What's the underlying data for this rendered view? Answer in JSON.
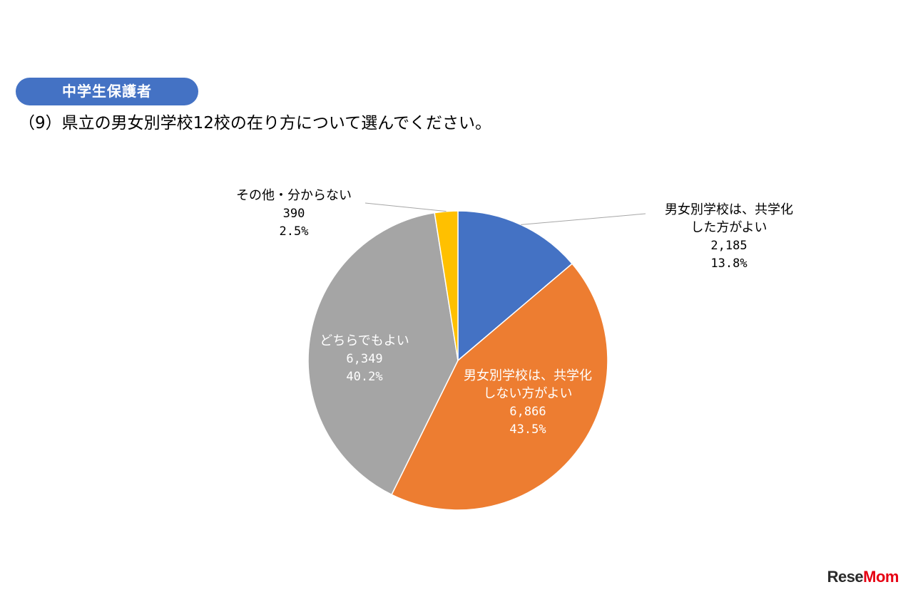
{
  "badge": "中学生保護者",
  "question": "（9）県立の男女別学校12校の在り方について選んでください。",
  "chart_data": {
    "type": "pie",
    "title": "",
    "slices": [
      {
        "label_lines": [
          "男女別学校は、共学化",
          "した方がよい"
        ],
        "count": "2,185",
        "percent": "13.8%",
        "value": 13.8,
        "color": "#4472c4"
      },
      {
        "label_lines": [
          "男女別学校は、共学化",
          "しない方がよい"
        ],
        "count": "6,866",
        "percent": "43.5%",
        "value": 43.5,
        "color": "#ed7d31"
      },
      {
        "label_lines": [
          "どちらでもよい"
        ],
        "count": "6,349",
        "percent": "40.2%",
        "value": 40.2,
        "color": "#a5a5a5"
      },
      {
        "label_lines": [
          "その他・分からない"
        ],
        "count": "390",
        "percent": "2.5%",
        "value": 2.5,
        "color": "#ffc000"
      }
    ]
  },
  "logo": {
    "main": "Rese",
    "accent": "Mom"
  }
}
